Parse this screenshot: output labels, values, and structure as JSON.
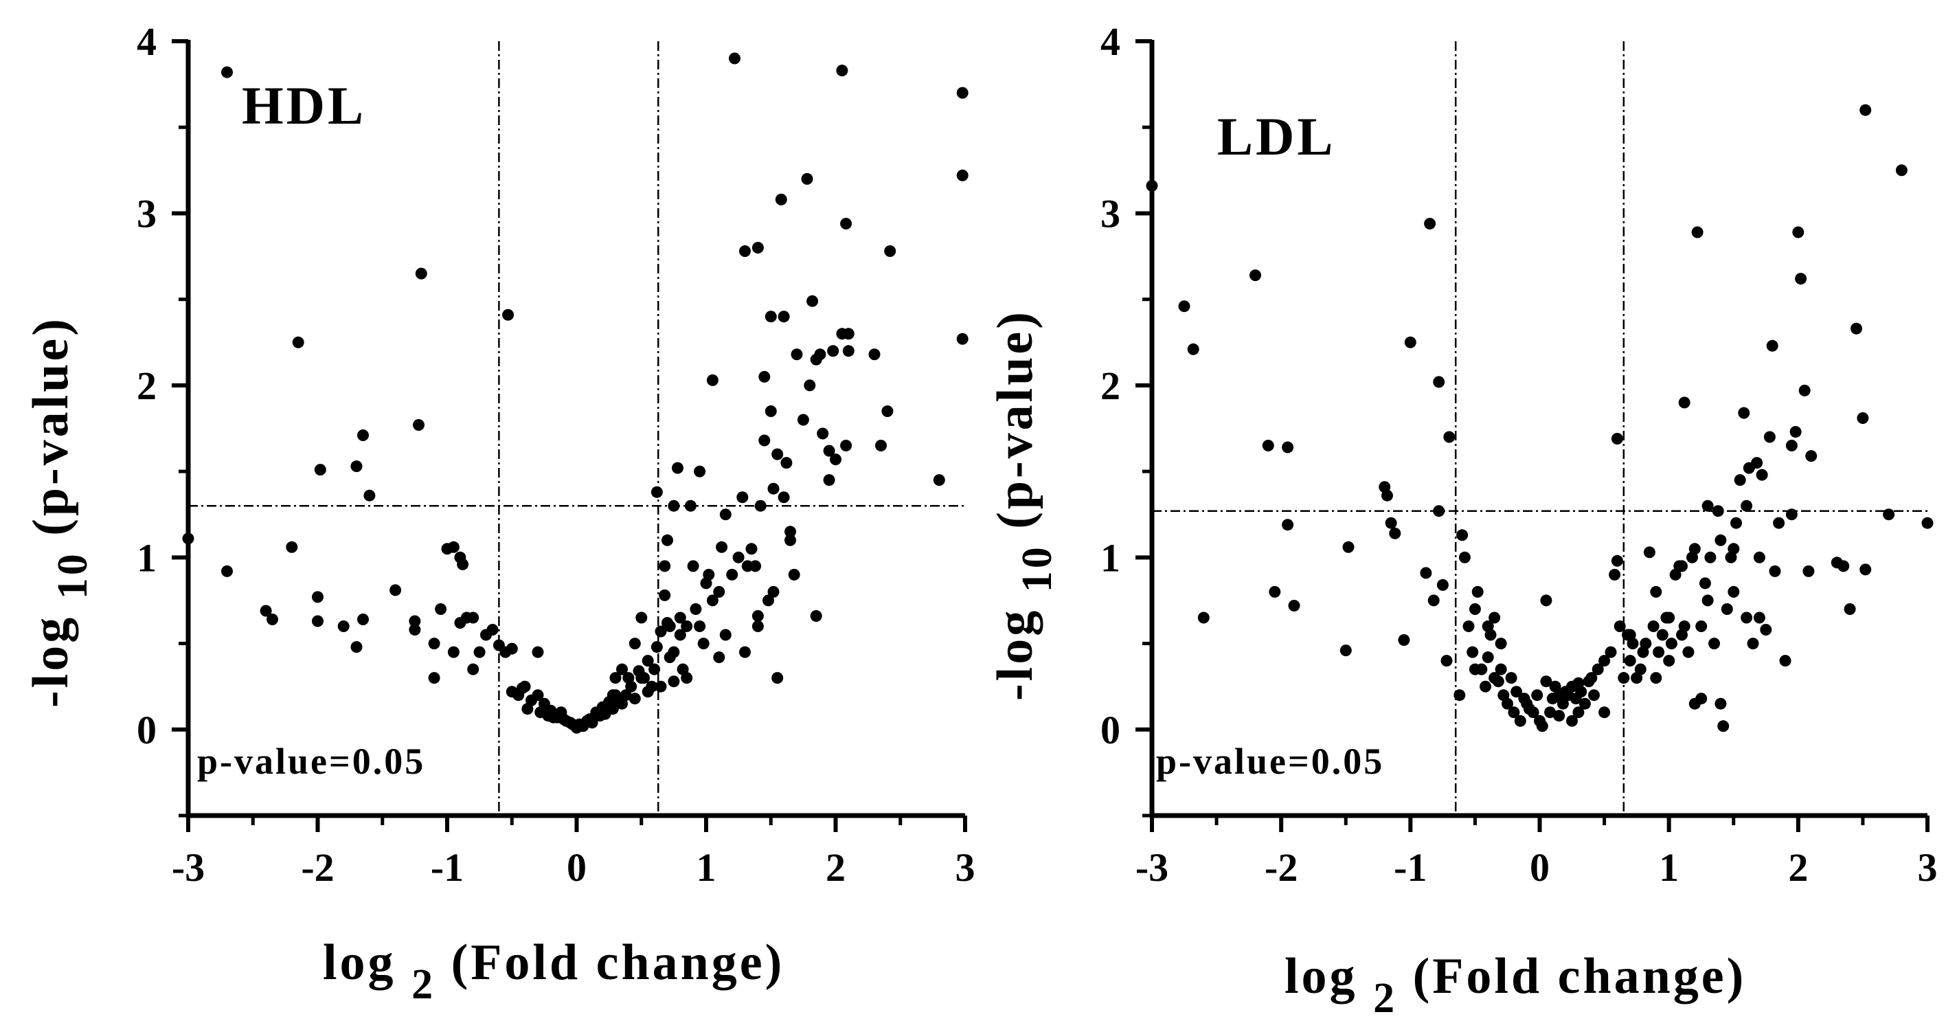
{
  "figure": {
    "panels": [
      "HDL",
      "LDL"
    ]
  },
  "chart_data": [
    {
      "type": "scatter",
      "title": "",
      "panel_label": "HDL",
      "xlabel_main": "log",
      "xlabel_sub": "2",
      "xlabel_tail": "(Fold change)",
      "ylabel_main": "-log",
      "ylabel_sub": "10",
      "ylabel_tail": "(p-value)",
      "xlim": [
        -3,
        3
      ],
      "ylim": [
        -0.5,
        4
      ],
      "xticks": [
        -3,
        -2,
        -1,
        0,
        1,
        2,
        3
      ],
      "yticks": [
        0,
        1,
        2,
        3,
        4
      ],
      "xtick_labels": [
        "-3",
        "-2",
        "-1",
        "0",
        "1",
        "2",
        "3"
      ],
      "ytick_labels": [
        "0",
        "1",
        "2",
        "3",
        "4"
      ],
      "hline": 1.3,
      "hline_label": "p-value=0.05",
      "vlines": [
        -0.6,
        0.63
      ],
      "grid": false,
      "points": [
        [
          -2.7,
          3.82
        ],
        [
          -3.0,
          1.11
        ],
        [
          -2.7,
          0.92
        ],
        [
          -2.4,
          0.69
        ],
        [
          -2.35,
          0.64
        ],
        [
          -2.2,
          1.06
        ],
        [
          -2.15,
          2.25
        ],
        [
          -2.0,
          0.77
        ],
        [
          -2.0,
          0.63
        ],
        [
          -1.98,
          1.51
        ],
        [
          -1.8,
          0.6
        ],
        [
          -1.7,
          1.53
        ],
        [
          -1.7,
          0.48
        ],
        [
          -1.65,
          1.71
        ],
        [
          -1.65,
          0.64
        ],
        [
          -1.6,
          1.36
        ],
        [
          -1.4,
          0.81
        ],
        [
          -1.25,
          0.63
        ],
        [
          -1.25,
          0.58
        ],
        [
          -1.2,
          2.65
        ],
        [
          -1.22,
          1.77
        ],
        [
          -1.1,
          0.5
        ],
        [
          -1.1,
          0.3
        ],
        [
          -1.05,
          0.7
        ],
        [
          -1.0,
          1.05
        ],
        [
          -0.95,
          1.06
        ],
        [
          -0.9,
          0.62
        ],
        [
          -0.95,
          0.45
        ],
        [
          -0.9,
          1.0
        ],
        [
          -0.88,
          0.96
        ],
        [
          -0.85,
          0.65
        ],
        [
          -0.8,
          0.35
        ],
        [
          -0.8,
          0.65
        ],
        [
          -0.75,
          0.45
        ],
        [
          -0.7,
          0.55
        ],
        [
          -0.65,
          0.58
        ],
        [
          -0.6,
          0.49
        ],
        [
          -0.55,
          0.45
        ],
        [
          -0.5,
          0.47
        ],
        [
          -0.53,
          2.41
        ],
        [
          -0.5,
          0.22
        ],
        [
          -0.45,
          0.2
        ],
        [
          -0.42,
          0.24
        ],
        [
          -0.4,
          0.25
        ],
        [
          -0.38,
          0.12
        ],
        [
          -0.35,
          0.17
        ],
        [
          -0.3,
          0.45
        ],
        [
          -0.3,
          0.2
        ],
        [
          -0.28,
          0.1
        ],
        [
          -0.25,
          0.15
        ],
        [
          -0.22,
          0.08
        ],
        [
          -0.2,
          0.11
        ],
        [
          -0.18,
          0.07
        ],
        [
          -0.15,
          0.07
        ],
        [
          -0.12,
          0.1
        ],
        [
          -0.1,
          0.06
        ],
        [
          -0.08,
          0.05
        ],
        [
          -0.05,
          0.04
        ],
        [
          -0.03,
          0.03
        ],
        [
          0.0,
          0.01
        ],
        [
          0.02,
          0.03
        ],
        [
          0.05,
          0.02
        ],
        [
          0.08,
          0.05
        ],
        [
          0.1,
          0.06
        ],
        [
          0.12,
          0.04
        ],
        [
          0.15,
          0.1
        ],
        [
          0.18,
          0.08
        ],
        [
          0.2,
          0.13
        ],
        [
          0.22,
          0.09
        ],
        [
          0.25,
          0.16
        ],
        [
          0.28,
          0.12
        ],
        [
          0.3,
          0.2
        ],
        [
          0.32,
          0.18
        ],
        [
          0.35,
          0.15
        ],
        [
          0.38,
          0.2
        ],
        [
          0.4,
          0.3
        ],
        [
          0.42,
          0.25
        ],
        [
          0.45,
          0.5
        ],
        [
          0.48,
          0.34
        ],
        [
          0.5,
          0.3
        ],
        [
          0.5,
          0.65
        ],
        [
          0.52,
          0.3
        ],
        [
          0.55,
          0.4
        ],
        [
          0.55,
          0.22
        ],
        [
          0.6,
          0.35
        ],
        [
          0.62,
          0.48
        ],
        [
          0.62,
          1.38
        ],
        [
          0.65,
          0.57
        ],
        [
          0.65,
          0.25
        ],
        [
          0.68,
          0.78
        ],
        [
          0.68,
          0.95
        ],
        [
          0.7,
          0.62
        ],
        [
          0.7,
          1.1
        ],
        [
          0.72,
          0.6
        ],
        [
          0.72,
          0.42
        ],
        [
          0.75,
          1.3
        ],
        [
          0.75,
          0.28
        ],
        [
          0.78,
          1.52
        ],
        [
          0.8,
          0.55
        ],
        [
          0.8,
          0.65
        ],
        [
          0.82,
          0.35
        ],
        [
          0.85,
          0.3
        ],
        [
          0.85,
          0.6
        ],
        [
          0.88,
          1.3
        ],
        [
          0.9,
          0.95
        ],
        [
          0.92,
          0.7
        ],
        [
          0.95,
          1.5
        ],
        [
          0.98,
          0.5
        ],
        [
          1.0,
          0.85
        ],
        [
          1.02,
          0.9
        ],
        [
          1.05,
          2.03
        ],
        [
          1.05,
          0.75
        ],
        [
          1.1,
          0.42
        ],
        [
          1.1,
          0.8
        ],
        [
          1.12,
          1.06
        ],
        [
          1.15,
          1.25
        ],
        [
          1.2,
          0.9
        ],
        [
          1.22,
          3.9
        ],
        [
          1.25,
          1.0
        ],
        [
          1.28,
          1.35
        ],
        [
          1.3,
          2.78
        ],
        [
          1.3,
          0.45
        ],
        [
          1.32,
          0.95
        ],
        [
          1.35,
          1.05
        ],
        [
          1.38,
          0.95
        ],
        [
          1.4,
          2.8
        ],
        [
          1.4,
          0.66
        ],
        [
          1.42,
          1.3
        ],
        [
          1.45,
          1.68
        ],
        [
          1.45,
          2.05
        ],
        [
          1.48,
          0.75
        ],
        [
          1.5,
          1.85
        ],
        [
          1.5,
          2.4
        ],
        [
          1.52,
          1.4
        ],
        [
          1.52,
          0.8
        ],
        [
          1.55,
          0.3
        ],
        [
          1.55,
          1.6
        ],
        [
          1.58,
          3.08
        ],
        [
          1.6,
          2.4
        ],
        [
          1.62,
          1.55
        ],
        [
          1.65,
          1.15
        ],
        [
          1.65,
          1.1
        ],
        [
          1.68,
          0.9
        ],
        [
          1.7,
          2.18
        ],
        [
          1.75,
          1.8
        ],
        [
          1.78,
          3.2
        ],
        [
          1.8,
          2.0
        ],
        [
          1.82,
          2.49
        ],
        [
          1.85,
          2.15
        ],
        [
          1.85,
          0.66
        ],
        [
          1.88,
          2.18
        ],
        [
          1.9,
          1.72
        ],
        [
          1.95,
          1.45
        ],
        [
          2.0,
          1.57
        ],
        [
          2.05,
          2.3
        ],
        [
          2.05,
          3.83
        ],
        [
          2.08,
          1.65
        ],
        [
          2.08,
          2.94
        ],
        [
          2.1,
          2.2
        ],
        [
          2.1,
          2.3
        ],
        [
          2.3,
          2.18
        ],
        [
          2.35,
          1.65
        ],
        [
          2.4,
          1.85
        ],
        [
          2.42,
          2.78
        ],
        [
          2.8,
          1.45
        ],
        [
          2.98,
          3.7
        ],
        [
          2.98,
          3.22
        ],
        [
          2.98,
          2.27
        ],
        [
          1.95,
          1.62
        ],
        [
          1.98,
          2.2
        ],
        [
          1.4,
          0.6
        ],
        [
          1.6,
          1.35
        ],
        [
          1.15,
          0.55
        ],
        [
          0.95,
          0.6
        ],
        [
          0.75,
          0.45
        ],
        [
          0.58,
          0.25
        ],
        [
          0.45,
          0.18
        ],
        [
          0.35,
          0.35
        ],
        [
          0.3,
          0.3
        ],
        [
          0.28,
          0.2
        ]
      ]
    },
    {
      "type": "scatter",
      "title": "",
      "panel_label": "LDL",
      "xlabel_main": "log",
      "xlabel_sub": "2",
      "xlabel_tail": "(Fold change)",
      "ylabel_main": "-log",
      "ylabel_sub": "10",
      "ylabel_tail": "(p-value)",
      "xlim": [
        -3,
        3
      ],
      "ylim": [
        -0.5,
        4
      ],
      "xticks": [
        -3,
        -2,
        -1,
        0,
        1,
        2,
        3
      ],
      "yticks": [
        0,
        1,
        2,
        3,
        4
      ],
      "xtick_labels": [
        "-3",
        "-2",
        "-1",
        "0",
        "1",
        "2",
        "3"
      ],
      "ytick_labels": [
        "0",
        "1",
        "2",
        "3",
        "4"
      ],
      "hline": 1.27,
      "hline_label": "p-value=0.05",
      "vlines": [
        -0.65,
        0.65
      ],
      "grid": false,
      "points": [
        [
          -3.0,
          3.16
        ],
        [
          -2.75,
          2.46
        ],
        [
          -2.68,
          2.21
        ],
        [
          -2.6,
          0.65
        ],
        [
          -2.2,
          2.64
        ],
        [
          -2.1,
          1.65
        ],
        [
          -2.05,
          0.8
        ],
        [
          -1.95,
          1.64
        ],
        [
          -1.95,
          1.19
        ],
        [
          -1.9,
          0.72
        ],
        [
          -1.5,
          0.46
        ],
        [
          -1.48,
          1.06
        ],
        [
          -1.2,
          1.41
        ],
        [
          -1.18,
          1.36
        ],
        [
          -1.15,
          1.2
        ],
        [
          -1.12,
          1.14
        ],
        [
          -1.05,
          0.52
        ],
        [
          -1.0,
          2.25
        ],
        [
          -0.88,
          0.91
        ],
        [
          -0.85,
          2.94
        ],
        [
          -0.82,
          0.75
        ],
        [
          -0.78,
          2.02
        ],
        [
          -0.78,
          1.27
        ],
        [
          -0.75,
          0.84
        ],
        [
          -0.72,
          0.4
        ],
        [
          -0.7,
          1.7
        ],
        [
          -0.62,
          0.2
        ],
        [
          -0.6,
          1.13
        ],
        [
          -0.58,
          1.0
        ],
        [
          -0.55,
          0.6
        ],
        [
          -0.52,
          0.45
        ],
        [
          -0.5,
          0.35
        ],
        [
          -0.5,
          0.7
        ],
        [
          -0.48,
          0.8
        ],
        [
          -0.45,
          0.35
        ],
        [
          -0.42,
          0.25
        ],
        [
          -0.4,
          0.42
        ],
        [
          -0.38,
          0.55
        ],
        [
          -0.35,
          0.65
        ],
        [
          -0.35,
          0.3
        ],
        [
          -0.32,
          0.28
        ],
        [
          -0.3,
          0.5
        ],
        [
          -0.28,
          0.2
        ],
        [
          -0.25,
          0.15
        ],
        [
          -0.22,
          0.3
        ],
        [
          -0.2,
          0.1
        ],
        [
          -0.18,
          0.22
        ],
        [
          -0.15,
          0.05
        ],
        [
          -0.12,
          0.18
        ],
        [
          -0.1,
          0.15
        ],
        [
          -0.08,
          0.12
        ],
        [
          -0.05,
          0.1
        ],
        [
          -0.02,
          0.2
        ],
        [
          0.0,
          0.05
        ],
        [
          0.02,
          0.02
        ],
        [
          0.05,
          0.28
        ],
        [
          0.05,
          0.75
        ],
        [
          0.08,
          0.1
        ],
        [
          0.1,
          0.18
        ],
        [
          0.12,
          0.25
        ],
        [
          0.15,
          0.2
        ],
        [
          0.18,
          0.15
        ],
        [
          0.2,
          0.22
        ],
        [
          0.22,
          0.2
        ],
        [
          0.25,
          0.25
        ],
        [
          0.28,
          0.18
        ],
        [
          0.3,
          0.1
        ],
        [
          0.3,
          0.27
        ],
        [
          0.32,
          0.22
        ],
        [
          0.35,
          0.15
        ],
        [
          0.38,
          0.28
        ],
        [
          0.4,
          0.3
        ],
        [
          0.42,
          0.2
        ],
        [
          0.45,
          0.35
        ],
        [
          0.5,
          0.4
        ],
        [
          0.5,
          0.1
        ],
        [
          0.55,
          0.45
        ],
        [
          0.58,
          0.9
        ],
        [
          0.6,
          0.98
        ],
        [
          0.6,
          1.69
        ],
        [
          0.62,
          0.6
        ],
        [
          0.65,
          0.3
        ],
        [
          0.68,
          0.55
        ],
        [
          0.7,
          0.4
        ],
        [
          0.72,
          0.5
        ],
        [
          0.75,
          0.3
        ],
        [
          0.78,
          0.35
        ],
        [
          0.8,
          0.45
        ],
        [
          0.82,
          0.5
        ],
        [
          0.85,
          1.03
        ],
        [
          0.88,
          0.6
        ],
        [
          0.9,
          0.3
        ],
        [
          0.92,
          0.45
        ],
        [
          0.95,
          0.55
        ],
        [
          0.98,
          0.65
        ],
        [
          1.0,
          0.4
        ],
        [
          1.02,
          0.5
        ],
        [
          1.05,
          0.9
        ],
        [
          1.08,
          0.95
        ],
        [
          1.1,
          0.55
        ],
        [
          1.12,
          1.9
        ],
        [
          1.12,
          0.6
        ],
        [
          1.15,
          0.45
        ],
        [
          1.18,
          1.0
        ],
        [
          1.2,
          0.15
        ],
        [
          1.22,
          2.89
        ],
        [
          1.25,
          0.18
        ],
        [
          1.25,
          0.6
        ],
        [
          1.28,
          0.85
        ],
        [
          1.3,
          0.75
        ],
        [
          1.32,
          1.0
        ],
        [
          1.35,
          0.5
        ],
        [
          1.38,
          1.27
        ],
        [
          1.4,
          0.15
        ],
        [
          1.42,
          0.02
        ],
        [
          1.45,
          0.7
        ],
        [
          1.48,
          1.0
        ],
        [
          1.5,
          1.05
        ],
        [
          1.52,
          1.2
        ],
        [
          1.55,
          1.45
        ],
        [
          1.58,
          1.84
        ],
        [
          1.6,
          1.3
        ],
        [
          1.62,
          1.52
        ],
        [
          1.65,
          0.5
        ],
        [
          1.68,
          1.55
        ],
        [
          1.7,
          0.65
        ],
        [
          1.72,
          1.48
        ],
        [
          1.75,
          0.58
        ],
        [
          1.78,
          1.7
        ],
        [
          1.8,
          2.23
        ],
        [
          1.82,
          0.92
        ],
        [
          1.85,
          1.2
        ],
        [
          1.9,
          0.4
        ],
        [
          1.95,
          1.65
        ],
        [
          1.98,
          1.73
        ],
        [
          2.0,
          2.89
        ],
        [
          2.02,
          2.62
        ],
        [
          2.05,
          1.97
        ],
        [
          2.08,
          0.92
        ],
        [
          2.1,
          1.59
        ],
        [
          2.3,
          0.97
        ],
        [
          2.35,
          0.95
        ],
        [
          2.4,
          0.7
        ],
        [
          2.45,
          2.33
        ],
        [
          2.5,
          1.81
        ],
        [
          2.52,
          3.6
        ],
        [
          2.52,
          0.93
        ],
        [
          2.7,
          1.25
        ],
        [
          2.8,
          3.25
        ],
        [
          3.0,
          1.2
        ],
        [
          1.1,
          0.95
        ],
        [
          1.0,
          0.65
        ],
        [
          0.9,
          0.8
        ],
        [
          0.7,
          0.55
        ],
        [
          1.5,
          0.8
        ],
        [
          1.6,
          0.65
        ],
        [
          1.3,
          1.3
        ],
        [
          1.4,
          1.1
        ],
        [
          1.7,
          1.0
        ],
        [
          1.95,
          1.25
        ],
        [
          1.2,
          1.05
        ],
        [
          -0.4,
          0.6
        ],
        [
          -0.3,
          0.35
        ],
        [
          0.15,
          0.08
        ],
        [
          0.25,
          0.05
        ]
      ]
    }
  ]
}
